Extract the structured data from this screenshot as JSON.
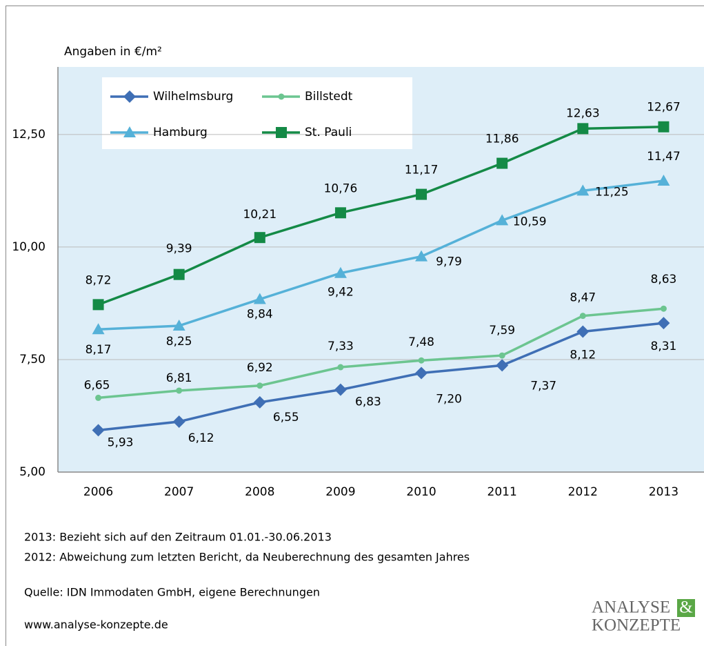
{
  "chart_data": {
    "type": "line",
    "y_label": "Angaben in €/m²",
    "categories": [
      "2006",
      "2007",
      "2008",
      "2009",
      "2010",
      "2011",
      "2012",
      "2013"
    ],
    "series": [
      {
        "name": "Wilhelmsburg",
        "color": "#3f6fb5",
        "marker": "diamond",
        "values": [
          5.93,
          6.12,
          6.55,
          6.83,
          7.2,
          7.37,
          8.12,
          8.31
        ],
        "value_labels": [
          "5,93",
          "6,12",
          "6,55",
          "6,83",
          "7,20",
          "7,37",
          "8,12",
          "8,31"
        ]
      },
      {
        "name": "Billstedt",
        "color": "#6cc590",
        "marker": "circle",
        "values": [
          6.65,
          6.81,
          6.92,
          7.33,
          7.48,
          7.59,
          8.47,
          8.63
        ],
        "value_labels": [
          "6,65",
          "6,81",
          "6,92",
          "7,33",
          "7,48",
          "7,59",
          "8,47",
          "8,63"
        ]
      },
      {
        "name": "Hamburg",
        "color": "#55b1d8",
        "marker": "triangle",
        "values": [
          8.17,
          8.25,
          8.84,
          9.42,
          9.79,
          10.59,
          11.25,
          11.47
        ],
        "value_labels": [
          "8,17",
          "8,25",
          "8,84",
          "9,42",
          "9,79",
          "10,59",
          "11,25",
          "11,47"
        ]
      },
      {
        "name": "St. Pauli",
        "color": "#148a46",
        "marker": "square",
        "values": [
          8.72,
          9.39,
          10.21,
          10.76,
          11.17,
          11.86,
          12.63,
          12.67
        ],
        "value_labels": [
          "8,72",
          "9,39",
          "10,21",
          "10,76",
          "11,17",
          "11,86",
          "12,63",
          "12,67"
        ]
      }
    ],
    "ylim": [
      5,
      14
    ],
    "yticks": [
      {
        "value": 5,
        "label": "5,00"
      },
      {
        "value": 7.5,
        "label": "7,50"
      },
      {
        "value": 10,
        "label": "10,00"
      },
      {
        "value": 12.5,
        "label": "12,50"
      }
    ],
    "grid": true,
    "legend": "upper left",
    "notes": [
      "2013: Bezieht sich auf den Zeitraum 01.01.-30.06.2013",
      "2012: Abweichung zum letzten Bericht, da Neuberechnung des gesamten Jahres",
      "Quelle: IDN Immodaten GmbH, eigene Berechnungen",
      "www.analyse-konzepte.de"
    ],
    "logo": [
      "ANALYSE",
      "&",
      "KONZEPTE"
    ]
  }
}
